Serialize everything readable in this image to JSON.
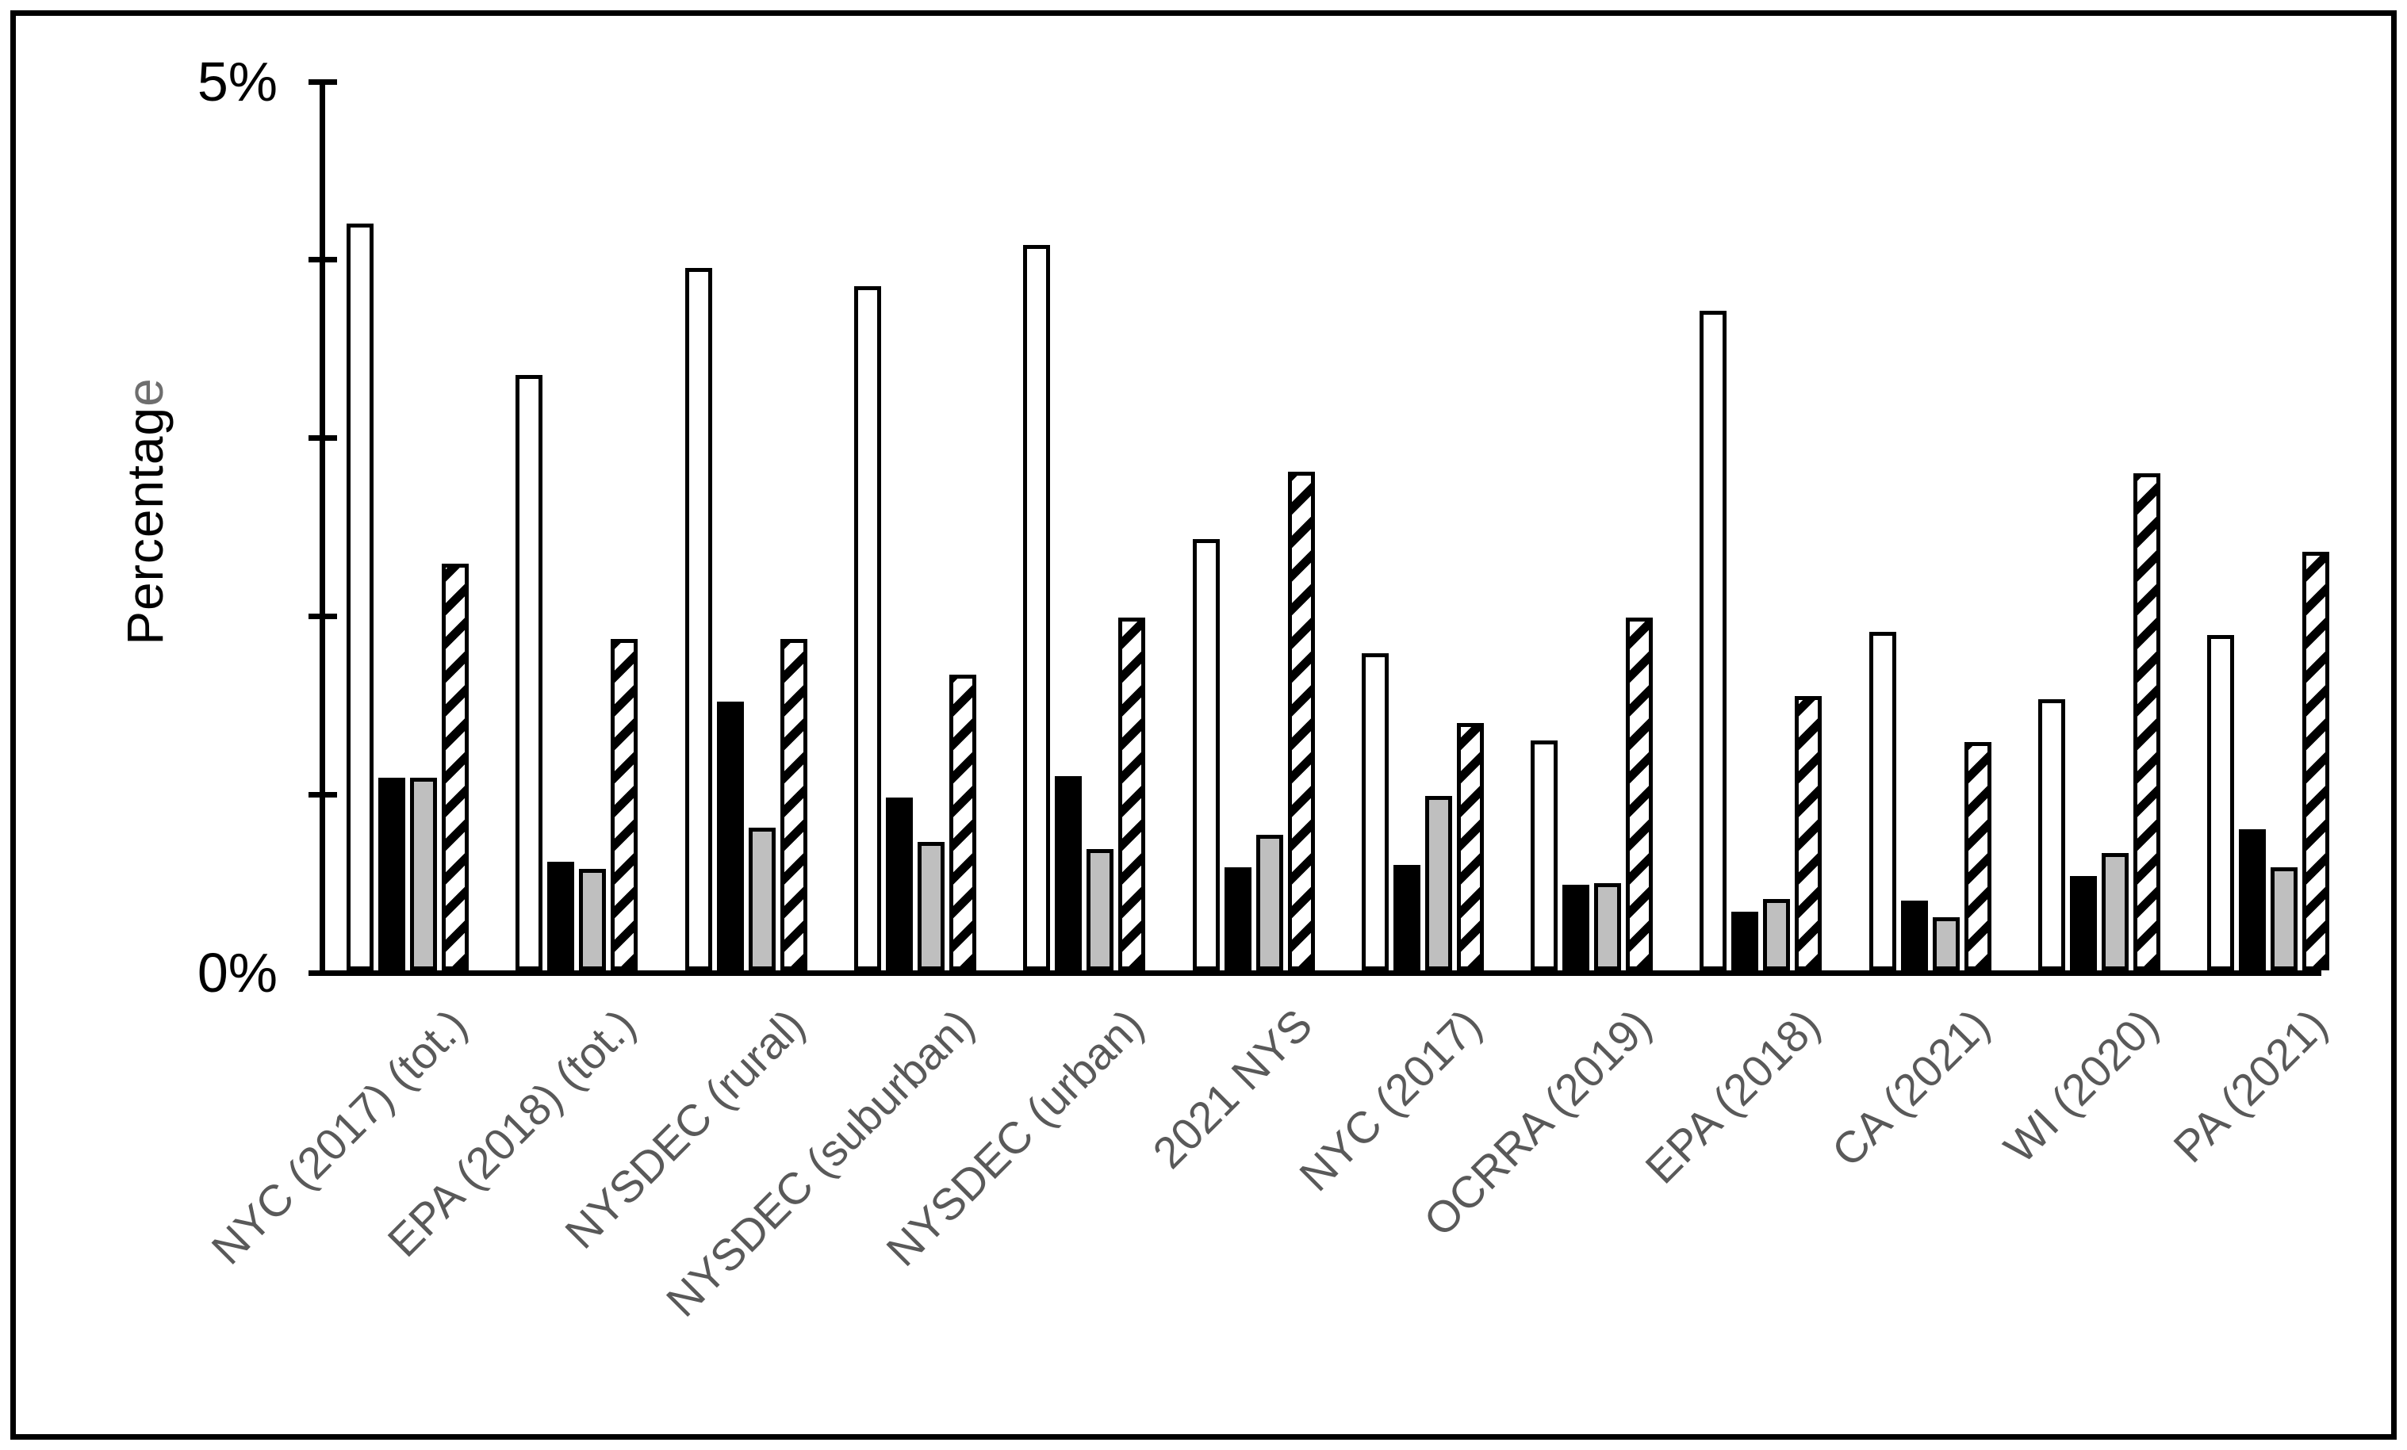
{
  "figure": {
    "background": "#ffffff",
    "border_color": "#000000"
  },
  "y_axis": {
    "title": "Percentage",
    "title_black_part": "Percentag",
    "title_gray_part": "e",
    "top_tick_label": "5%",
    "bottom_tick_label": "0%"
  },
  "colors": {
    "axis": "#000000",
    "bar_outline": "#000000",
    "bar_white_fill": "#ffffff",
    "bar_black_fill": "#000000",
    "bar_gray_fill": "#bfbfbf",
    "hatch_stripe": "#000000",
    "x_label_text": "#595959",
    "y_title_last_char": "#6e6e6e"
  },
  "chart_data": {
    "type": "bar",
    "title": "",
    "xlabel": "",
    "ylabel": "Percentage",
    "ylim": [
      0,
      5
    ],
    "ytick_labels_shown": [
      "0%",
      "5%"
    ],
    "yticks_positions_pct": [
      0,
      1,
      2,
      3,
      4,
      5
    ],
    "grid": false,
    "legend": "none",
    "bar_style_note": "4 bars per category: white outlined, solid black, solid gray, black-and-white diagonal hatch (/)",
    "categories": [
      "NYC (2017) (tot.)",
      "EPA (2018) (tot.)",
      "NYSDEC (rural)",
      "NYSDEC (suburban)",
      "NYSDEC (urban)",
      "2021 NYS",
      "NYC (2017)",
      "OCRRA (2019)",
      "EPA (2018)",
      "CA (2021)",
      "WI (2020)",
      "PA (2021)"
    ],
    "series": [
      {
        "name": "white",
        "appearance": "white fill, black outline",
        "values": [
          4.19,
          3.34,
          3.94,
          3.84,
          4.07,
          2.42,
          1.78,
          1.29,
          3.7,
          1.9,
          1.52,
          1.88
        ]
      },
      {
        "name": "black",
        "appearance": "solid black fill",
        "values": [
          1.08,
          0.61,
          1.51,
          0.97,
          1.09,
          0.58,
          0.59,
          0.48,
          0.33,
          0.39,
          0.53,
          0.79
        ]
      },
      {
        "name": "gray",
        "appearance": "light gray fill, black outline",
        "values": [
          1.08,
          0.57,
          0.8,
          0.72,
          0.68,
          0.76,
          0.98,
          0.49,
          0.4,
          0.3,
          0.66,
          0.58
        ]
      },
      {
        "name": "hatched",
        "appearance": "diagonal black/white stripes, black outline",
        "values": [
          2.28,
          1.86,
          1.86,
          1.66,
          1.98,
          2.8,
          1.39,
          1.98,
          1.54,
          1.28,
          2.79,
          2.35
        ]
      }
    ]
  }
}
